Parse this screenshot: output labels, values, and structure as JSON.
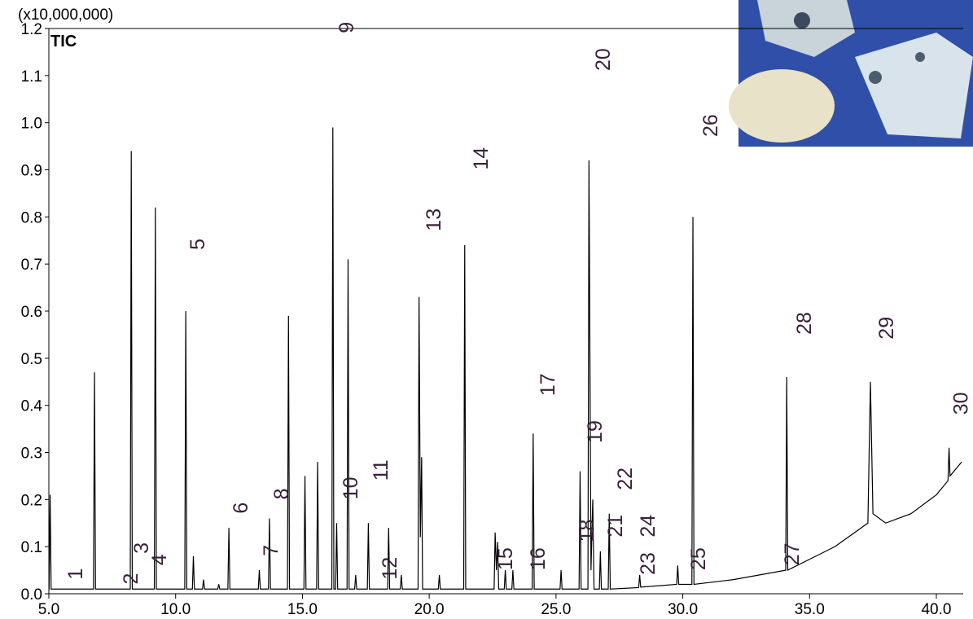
{
  "chart_data": {
    "type": "line",
    "unit_label": "(x10,000,000)",
    "trace_label": "TIC",
    "color": "#000000",
    "label_color": "#3a1f3a",
    "xlim": [
      5,
      41.06
    ],
    "ylim": [
      0,
      1.2
    ],
    "xticks": [
      {
        "value": 5,
        "label": "5.0"
      },
      {
        "value": 10,
        "label": "10.0"
      },
      {
        "value": 15,
        "label": "15.0"
      },
      {
        "value": 20,
        "label": "20.0"
      },
      {
        "value": 25,
        "label": "25.0"
      },
      {
        "value": 30,
        "label": "30.0"
      },
      {
        "value": 35,
        "label": "35.0"
      },
      {
        "value": 40,
        "label": "40.0"
      }
    ],
    "yticks": [
      {
        "value": 0,
        "label": "0.0"
      },
      0.1,
      0.2,
      0.3,
      0.4,
      0.5,
      0.6,
      0.7,
      0.8,
      0.9,
      {
        "value": 1,
        "label": "1.0"
      },
      1.1,
      1.2
    ],
    "x": [
      5.0,
      5.01,
      5.05,
      5.09,
      6.76,
      6.8,
      6.84,
      8.21,
      8.25,
      8.29,
      9.16,
      9.2,
      9.24,
      10.36,
      10.4,
      10.44,
      10.66,
      10.7,
      10.74,
      11.06,
      11.1,
      11.14,
      11.66,
      11.7,
      11.74,
      12.06,
      12.1,
      12.14,
      13.26,
      13.3,
      13.34,
      13.66,
      13.7,
      13.74,
      14.41,
      14.45,
      14.49,
      15.06,
      15.1,
      15.14,
      15.56,
      15.6,
      15.64,
      16.16,
      16.2,
      16.24,
      16.31,
      16.35,
      16.39,
      16.76,
      16.8,
      16.84,
      17.06,
      17.1,
      17.14,
      17.56,
      17.6,
      17.64,
      18.36,
      18.4,
      18.44,
      18.86,
      18.9,
      18.94,
      19.56,
      19.6,
      19.65,
      19.7,
      19.74,
      20.36,
      20.4,
      20.44,
      21.36,
      21.4,
      21.44,
      22.56,
      22.6,
      22.65,
      22.7,
      22.74,
      22.96,
      23.0,
      23.04,
      23.26,
      23.3,
      23.34,
      24.06,
      24.1,
      24.14,
      25.16,
      25.2,
      25.24,
      25.91,
      25.95,
      25.99,
      26.26,
      26.3,
      26.38,
      26.45,
      26.5,
      26.71,
      26.75,
      26.79,
      27.06,
      27.1,
      27.14,
      28.26,
      28.3,
      28.34,
      29.76,
      29.8,
      29.84,
      30.36,
      30.4,
      30.44,
      32.0,
      34.06,
      34.1,
      34.14,
      36.0,
      37.3,
      37.4,
      37.5,
      38.0,
      39.0,
      40.0,
      40.46,
      40.5,
      40.54,
      41.0
    ],
    "values": [
      0.01,
      0.01,
      0.21,
      0.01,
      0.01,
      0.47,
      0.01,
      0.01,
      0.94,
      0.01,
      0.01,
      0.82,
      0.01,
      0.01,
      0.6,
      0.01,
      0.01,
      0.08,
      0.01,
      0.01,
      0.03,
      0.01,
      0.01,
      0.02,
      0.01,
      0.01,
      0.14,
      0.01,
      0.01,
      0.05,
      0.01,
      0.01,
      0.16,
      0.01,
      0.01,
      0.59,
      0.01,
      0.01,
      0.25,
      0.01,
      0.01,
      0.28,
      0.01,
      0.01,
      0.99,
      0.01,
      0.01,
      0.15,
      0.01,
      0.01,
      0.71,
      0.01,
      0.01,
      0.04,
      0.01,
      0.01,
      0.15,
      0.01,
      0.01,
      0.14,
      0.01,
      0.01,
      0.04,
      0.01,
      0.01,
      0.63,
      0.12,
      0.29,
      0.01,
      0.01,
      0.04,
      0.01,
      0.01,
      0.74,
      0.01,
      0.01,
      0.13,
      0.05,
      0.11,
      0.01,
      0.01,
      0.05,
      0.01,
      0.01,
      0.05,
      0.01,
      0.01,
      0.34,
      0.01,
      0.01,
      0.05,
      0.01,
      0.01,
      0.26,
      0.01,
      0.01,
      0.92,
      0.05,
      0.2,
      0.01,
      0.01,
      0.09,
      0.01,
      0.01,
      0.17,
      0.01,
      0.013,
      0.04,
      0.014,
      0.02,
      0.06,
      0.02,
      0.02,
      0.8,
      0.02,
      0.03,
      0.05,
      0.46,
      0.05,
      0.1,
      0.15,
      0.45,
      0.17,
      0.15,
      0.17,
      0.21,
      0.24,
      0.31,
      0.25,
      0.28
    ],
    "annotations": [
      {
        "text": "1",
        "x": 6.03,
        "y": 0.03
      },
      {
        "text": "2",
        "x": 8.21,
        "y": 0.02
      },
      {
        "text": "3",
        "x": 8.63,
        "y": 0.085
      },
      {
        "text": "4",
        "x": 9.34,
        "y": 0.06
      },
      {
        "text": "5",
        "x": 10.84,
        "y": 0.73
      },
      {
        "text": "6",
        "x": 12.55,
        "y": 0.17
      },
      {
        "text": "7",
        "x": 13.73,
        "y": 0.08
      },
      {
        "text": "8",
        "x": 14.15,
        "y": 0.2
      },
      {
        "text": "9",
        "x": 16.72,
        "y": 1.19
      },
      {
        "text": "10",
        "x": 16.88,
        "y": 0.2
      },
      {
        "text": "11",
        "x": 18.07,
        "y": 0.24
      },
      {
        "text": "12",
        "x": 18.42,
        "y": 0.03
      },
      {
        "text": "13",
        "x": 20.16,
        "y": 0.77
      },
      {
        "text": "14",
        "x": 22.02,
        "y": 0.9
      },
      {
        "text": "15",
        "x": 22.98,
        "y": 0.05
      },
      {
        "text": "16",
        "x": 24.27,
        "y": 0.05
      },
      {
        "text": "17",
        "x": 24.65,
        "y": 0.42
      },
      {
        "text": "18",
        "x": 26.2,
        "y": 0.11
      },
      {
        "text": "19",
        "x": 26.52,
        "y": 0.32
      },
      {
        "text": "20",
        "x": 26.84,
        "y": 1.11
      },
      {
        "text": "21",
        "x": 27.32,
        "y": 0.12
      },
      {
        "text": "22",
        "x": 27.7,
        "y": 0.22
      },
      {
        "text": "23",
        "x": 28.6,
        "y": 0.04
      },
      {
        "text": "24",
        "x": 28.6,
        "y": 0.12
      },
      {
        "text": "25",
        "x": 30.59,
        "y": 0.05
      },
      {
        "text": "26",
        "x": 31.07,
        "y": 0.97
      },
      {
        "text": "27",
        "x": 34.29,
        "y": 0.06
      },
      {
        "text": "28",
        "x": 34.77,
        "y": 0.55
      },
      {
        "text": "29",
        "x": 38.01,
        "y": 0.54
      },
      {
        "text": "30",
        "x": 40.95,
        "y": 0.38
      }
    ]
  }
}
